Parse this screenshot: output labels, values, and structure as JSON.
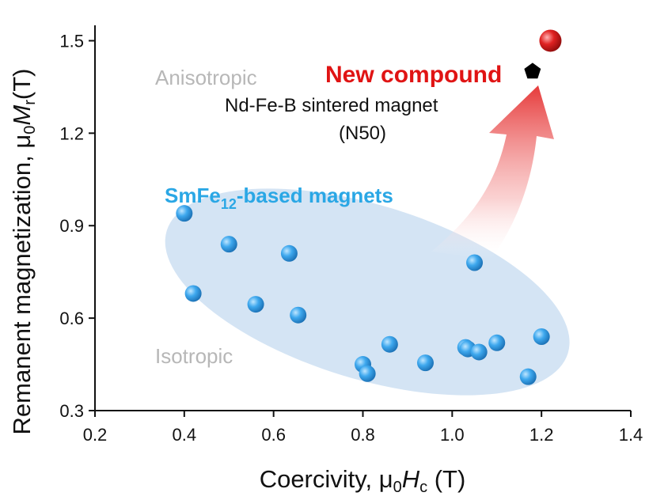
{
  "chart_data": {
    "type": "scatter",
    "xlabel": {
      "prefix": "Coercivity, ",
      "mu": "μ",
      "sub0": "0",
      "var": "H",
      "subvar": "c",
      "unit": " (T)"
    },
    "ylabel": {
      "prefix": "Remanent magnetization, ",
      "mu": "μ",
      "sub0": "0",
      "var": "M",
      "subvar": "r",
      "unit": "(T)"
    },
    "xlim": [
      0.2,
      1.4
    ],
    "ylim": [
      0.3,
      1.55
    ],
    "x_ticks": [
      "0.2",
      "0.4",
      "0.6",
      "0.8",
      "1.0",
      "1.2",
      "1.4"
    ],
    "y_ticks": [
      "0.3",
      "0.6",
      "0.9",
      "1.2",
      "1.5"
    ],
    "grid": false,
    "regions": {
      "anisotropic": "Anisotropic",
      "isotropic": "Isotropic"
    },
    "group_label": {
      "main": "SmFe",
      "sub": "12",
      "rest": "-based magnets"
    },
    "series": [
      {
        "name": "SmFe12-based magnets",
        "color": "#2d9be0",
        "points": [
          {
            "x": 0.4,
            "y": 0.94
          },
          {
            "x": 0.42,
            "y": 0.68
          },
          {
            "x": 0.5,
            "y": 0.84
          },
          {
            "x": 0.56,
            "y": 0.645
          },
          {
            "x": 0.635,
            "y": 0.81
          },
          {
            "x": 0.655,
            "y": 0.61
          },
          {
            "x": 0.8,
            "y": 0.45
          },
          {
            "x": 0.81,
            "y": 0.42
          },
          {
            "x": 0.86,
            "y": 0.515
          },
          {
            "x": 0.94,
            "y": 0.455
          },
          {
            "x": 1.03,
            "y": 0.505
          },
          {
            "x": 1.035,
            "y": 0.5
          },
          {
            "x": 1.05,
            "y": 0.78
          },
          {
            "x": 1.06,
            "y": 0.49
          },
          {
            "x": 1.1,
            "y": 0.52
          },
          {
            "x": 1.17,
            "y": 0.41
          },
          {
            "x": 1.2,
            "y": 0.54
          }
        ]
      },
      {
        "name": "New compound",
        "color": "#d61f1f",
        "points": [
          {
            "x": 1.22,
            "y": 1.5
          }
        ]
      },
      {
        "name": "Nd-Fe-B sintered magnet (N50)",
        "color": "#000000",
        "points": [
          {
            "x": 1.18,
            "y": 1.4
          }
        ]
      }
    ],
    "annotations": {
      "new_compound": "New compound",
      "ndfeb_line1": "Nd-Fe-B sintered magnet",
      "ndfeb_line2": "(N50)"
    }
  }
}
